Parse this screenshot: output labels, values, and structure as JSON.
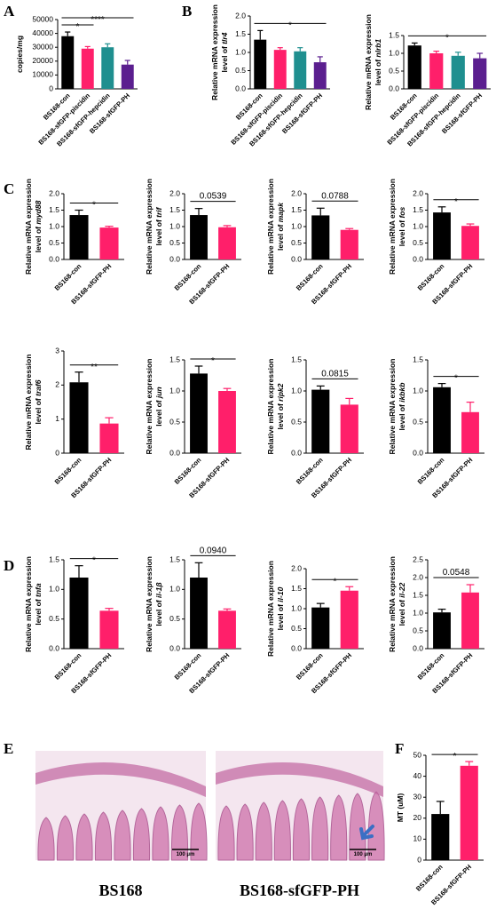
{
  "panel_labels": [
    "A",
    "B",
    "C",
    "D",
    "E",
    "F"
  ],
  "histology": {
    "images": [
      {
        "label": "BS168",
        "scale": "100 μm"
      },
      {
        "label": "BS168-sfGFP-PH",
        "scale": "100 μm"
      }
    ]
  },
  "chart_data": [
    {
      "type": "bar",
      "ylabel": [
        "copies/mg"
      ],
      "categories": [
        "BS168-con",
        "BS168-sfGFP-piscidin",
        "BS168-sfGFP-hepcidin",
        "BS168-sfGFP-PH"
      ],
      "values": [
        38000,
        29000,
        30000,
        17500
      ],
      "errors": [
        3000,
        1500,
        2500,
        3000
      ],
      "colors": [
        "#000000",
        "#ff1f6a",
        "#1f8f8f",
        "#5b1f8f"
      ],
      "ylim": [
        0,
        50000
      ],
      "yticks": [
        0,
        10000,
        20000,
        30000,
        40000,
        50000
      ],
      "significance": [
        "*",
        "****"
      ]
    },
    {
      "type": "bar",
      "ylabel": [
        "Relative mRNA expression",
        "level of "
      ],
      "gene": "tlr4",
      "categories": [
        "BS168-con",
        "BS168-sfGFP-piscidin",
        "BS168-sfGFP-hepcidin",
        "BS168-sfGFP-PH"
      ],
      "values": [
        1.35,
        1.07,
        1.03,
        0.73
      ],
      "errors": [
        0.25,
        0.06,
        0.1,
        0.15
      ],
      "colors": [
        "#000000",
        "#ff1f6a",
        "#1f8f8f",
        "#5b1f8f"
      ],
      "ylim": [
        0,
        2
      ],
      "yticks": [
        {
          "value": 0,
          "label": "0.0"
        },
        0.5,
        {
          "value": 1,
          "label": "1.0"
        },
        1.5,
        {
          "value": 2,
          "label": "2.0"
        }
      ],
      "significance": [
        "*"
      ]
    },
    {
      "type": "bar",
      "ylabel": [
        "Relative mRNA expression",
        "level of "
      ],
      "gene": "nlrb1",
      "categories": [
        "BS168-con",
        "BS168-sfGFP-piscidin",
        "BS168-sfGFP-hepcidin",
        "BS168-sfGFP-PH"
      ],
      "values": [
        1.22,
        1.0,
        0.93,
        0.86
      ],
      "errors": [
        0.07,
        0.06,
        0.1,
        0.14
      ],
      "colors": [
        "#000000",
        "#ff1f6a",
        "#1f8f8f",
        "#5b1f8f"
      ],
      "ylim": [
        0,
        1.5
      ],
      "yticks": [
        {
          "value": 0,
          "label": "0.0"
        },
        0.5,
        {
          "value": 1,
          "label": "1.0"
        },
        1.5
      ],
      "significance": [
        "*"
      ]
    },
    {
      "type": "bar",
      "ylabel": [
        "Relative mRNA expression",
        "level of "
      ],
      "gene": "myd88",
      "categories": [
        "BS168-con",
        "BS168-sfGFP-PH"
      ],
      "values": [
        1.35,
        0.97
      ],
      "errors": [
        0.15,
        0.04
      ],
      "colors": [
        "#000000",
        "#ff1f6a"
      ],
      "ylim": [
        0,
        2
      ],
      "yticks": [
        {
          "value": 0,
          "label": "0.0"
        },
        0.5,
        {
          "value": 1,
          "label": "1.0"
        },
        1.5,
        {
          "value": 2,
          "label": "2.0"
        }
      ],
      "significance": [
        "*"
      ]
    },
    {
      "type": "bar",
      "ylabel": [
        "Relative mRNA expression",
        "level of "
      ],
      "gene": "trif",
      "categories": [
        "BS168-con",
        "BS168-sfGFP-PH"
      ],
      "values": [
        1.35,
        0.98
      ],
      "errors": [
        0.2,
        0.05
      ],
      "colors": [
        "#000000",
        "#ff1f6a"
      ],
      "ylim": [
        0,
        2
      ],
      "yticks": [
        {
          "value": 0,
          "label": "0.0"
        },
        0.5,
        {
          "value": 1,
          "label": "1.0"
        },
        1.5,
        {
          "value": 2,
          "label": "2.0"
        }
      ],
      "significance": [
        "0.0539"
      ]
    },
    {
      "type": "bar",
      "ylabel": [
        "Relative mRNA expression",
        "level of "
      ],
      "gene": "mapk",
      "categories": [
        "BS168-con",
        "BS168-sfGFP-PH"
      ],
      "values": [
        1.34,
        0.9
      ],
      "errors": [
        0.22,
        0.04
      ],
      "colors": [
        "#000000",
        "#ff1f6a"
      ],
      "ylim": [
        0,
        2
      ],
      "yticks": [
        {
          "value": 0,
          "label": "0.0"
        },
        0.5,
        {
          "value": 1,
          "label": "1.0"
        },
        1.5,
        {
          "value": 2,
          "label": "2.0"
        }
      ],
      "significance": [
        "0.0788"
      ]
    },
    {
      "type": "bar",
      "ylabel": [
        "Relative mRNA expression",
        "level of "
      ],
      "gene": "fos",
      "categories": [
        "BS168-con",
        "BS168-sfGFP-PH"
      ],
      "values": [
        1.43,
        1.02
      ],
      "errors": [
        0.17,
        0.06
      ],
      "colors": [
        "#000000",
        "#ff1f6a"
      ],
      "ylim": [
        0,
        2
      ],
      "yticks": [
        {
          "value": 0,
          "label": "0.0"
        },
        0.5,
        {
          "value": 1,
          "label": "1.0"
        },
        1.5,
        {
          "value": 2,
          "label": "2.0"
        }
      ],
      "significance": [
        "*"
      ]
    },
    {
      "type": "bar",
      "ylabel": [
        "Relative mRNA expression",
        "level of "
      ],
      "gene": "traf6",
      "categories": [
        "BS168-con",
        "BS168-sfGFP-PH"
      ],
      "values": [
        2.08,
        0.87
      ],
      "errors": [
        0.3,
        0.17
      ],
      "colors": [
        "#000000",
        "#ff1f6a"
      ],
      "ylim": [
        0,
        3
      ],
      "yticks": [
        0,
        1,
        2,
        3
      ],
      "significance": [
        "**"
      ]
    },
    {
      "type": "bar",
      "ylabel": [
        "Relative mRNA expression",
        "level of "
      ],
      "gene": "jun",
      "categories": [
        "BS168-con",
        "BS168-sfGFP-PH"
      ],
      "values": [
        1.28,
        1.0
      ],
      "errors": [
        0.12,
        0.04
      ],
      "colors": [
        "#000000",
        "#ff1f6a"
      ],
      "ylim": [
        0,
        1.5
      ],
      "yticks": [
        {
          "value": 0,
          "label": "0.0"
        },
        0.5,
        {
          "value": 1,
          "label": "1.0"
        },
        1.5
      ],
      "significance": [
        "*"
      ]
    },
    {
      "type": "bar",
      "ylabel": [
        "Relative mRNA expression",
        "level of "
      ],
      "gene": "ripk2",
      "categories": [
        "BS168-con",
        "BS168-sfGFP-PH"
      ],
      "values": [
        1.02,
        0.78
      ],
      "errors": [
        0.06,
        0.1
      ],
      "colors": [
        "#000000",
        "#ff1f6a"
      ],
      "ylim": [
        0,
        1.5
      ],
      "yticks": [
        {
          "value": 0,
          "label": "0.0"
        },
        0.5,
        {
          "value": 1,
          "label": "1.0"
        },
        1.5
      ],
      "significance": [
        "0.0815"
      ]
    },
    {
      "type": "bar",
      "ylabel": [
        "Relative mRNA expression",
        "level of "
      ],
      "gene": "ikbkb",
      "categories": [
        "BS168-con",
        "BS168-sfGFP-PH"
      ],
      "values": [
        1.06,
        0.66
      ],
      "errors": [
        0.06,
        0.16
      ],
      "colors": [
        "#000000",
        "#ff1f6a"
      ],
      "ylim": [
        0,
        1.5
      ],
      "yticks": [
        {
          "value": 0,
          "label": "0.0"
        },
        0.5,
        {
          "value": 1,
          "label": "1.0"
        },
        1.5
      ],
      "significance": [
        "*"
      ]
    },
    {
      "type": "bar",
      "ylabel": [
        "Relative mRNA expression",
        "level of "
      ],
      "gene": "tnfa",
      "categories": [
        "BS168-con",
        "BS168-sfGFP-PH"
      ],
      "values": [
        1.2,
        0.64
      ],
      "errors": [
        0.2,
        0.04
      ],
      "colors": [
        "#000000",
        "#ff1f6a"
      ],
      "ylim": [
        0,
        1.5
      ],
      "yticks": [
        {
          "value": 0,
          "label": "0.0"
        },
        0.5,
        {
          "value": 1,
          "label": "1.0"
        },
        1.5
      ],
      "significance": [
        "*"
      ]
    },
    {
      "type": "bar",
      "ylabel": [
        "Relative mRNA expression",
        "level of "
      ],
      "gene": "il-1β",
      "categories": [
        "BS168-con",
        "BS168-sfGFP-PH"
      ],
      "values": [
        1.2,
        0.64
      ],
      "errors": [
        0.25,
        0.03
      ],
      "colors": [
        "#000000",
        "#ff1f6a"
      ],
      "ylim": [
        0,
        1.5
      ],
      "yticks": [
        {
          "value": 0,
          "label": "0.0"
        },
        0.5,
        {
          "value": 1,
          "label": "1.0"
        },
        1.5
      ],
      "significance": [
        "0.0940"
      ]
    },
    {
      "type": "bar",
      "ylabel": [
        "Relative mRNA expression",
        "level of "
      ],
      "gene": "il-10",
      "categories": [
        "BS168-con",
        "BS168-sfGFP-PH"
      ],
      "values": [
        1.03,
        1.45
      ],
      "errors": [
        0.1,
        0.1
      ],
      "colors": [
        "#000000",
        "#ff1f6a"
      ],
      "ylim": [
        0,
        2
      ],
      "yticks": [
        {
          "value": 0,
          "label": "0.0"
        },
        0.5,
        {
          "value": 1,
          "label": "1.0"
        },
        1.5,
        {
          "value": 2,
          "label": "2.0"
        }
      ],
      "significance": [
        "*"
      ]
    },
    {
      "type": "bar",
      "ylabel": [
        "Relative mRNA expression",
        "level of "
      ],
      "gene": "il-22",
      "categories": [
        "BS168-con",
        "BS168-sfGFP-PH"
      ],
      "values": [
        1.02,
        1.58
      ],
      "errors": [
        0.09,
        0.22
      ],
      "colors": [
        "#000000",
        "#ff1f6a"
      ],
      "ylim": [
        0,
        2.5
      ],
      "yticks": [
        {
          "value": 0,
          "label": "0.0"
        },
        0.5,
        {
          "value": 1,
          "label": "1.0"
        },
        1.5,
        {
          "value": 2,
          "label": "2.0"
        },
        2.5
      ],
      "significance": [
        "0.0548"
      ]
    },
    {
      "type": "bar",
      "ylabel": [
        "MT (uM)"
      ],
      "categories": [
        "BS168-con",
        "BS168-sfGFP-PH"
      ],
      "values": [
        22,
        45
      ],
      "errors": [
        6,
        2
      ],
      "colors": [
        "#000000",
        "#ff1f6a"
      ],
      "ylim": [
        0,
        50
      ],
      "yticks": [
        0,
        10,
        20,
        30,
        40,
        50
      ],
      "significance": [
        "*"
      ]
    }
  ]
}
